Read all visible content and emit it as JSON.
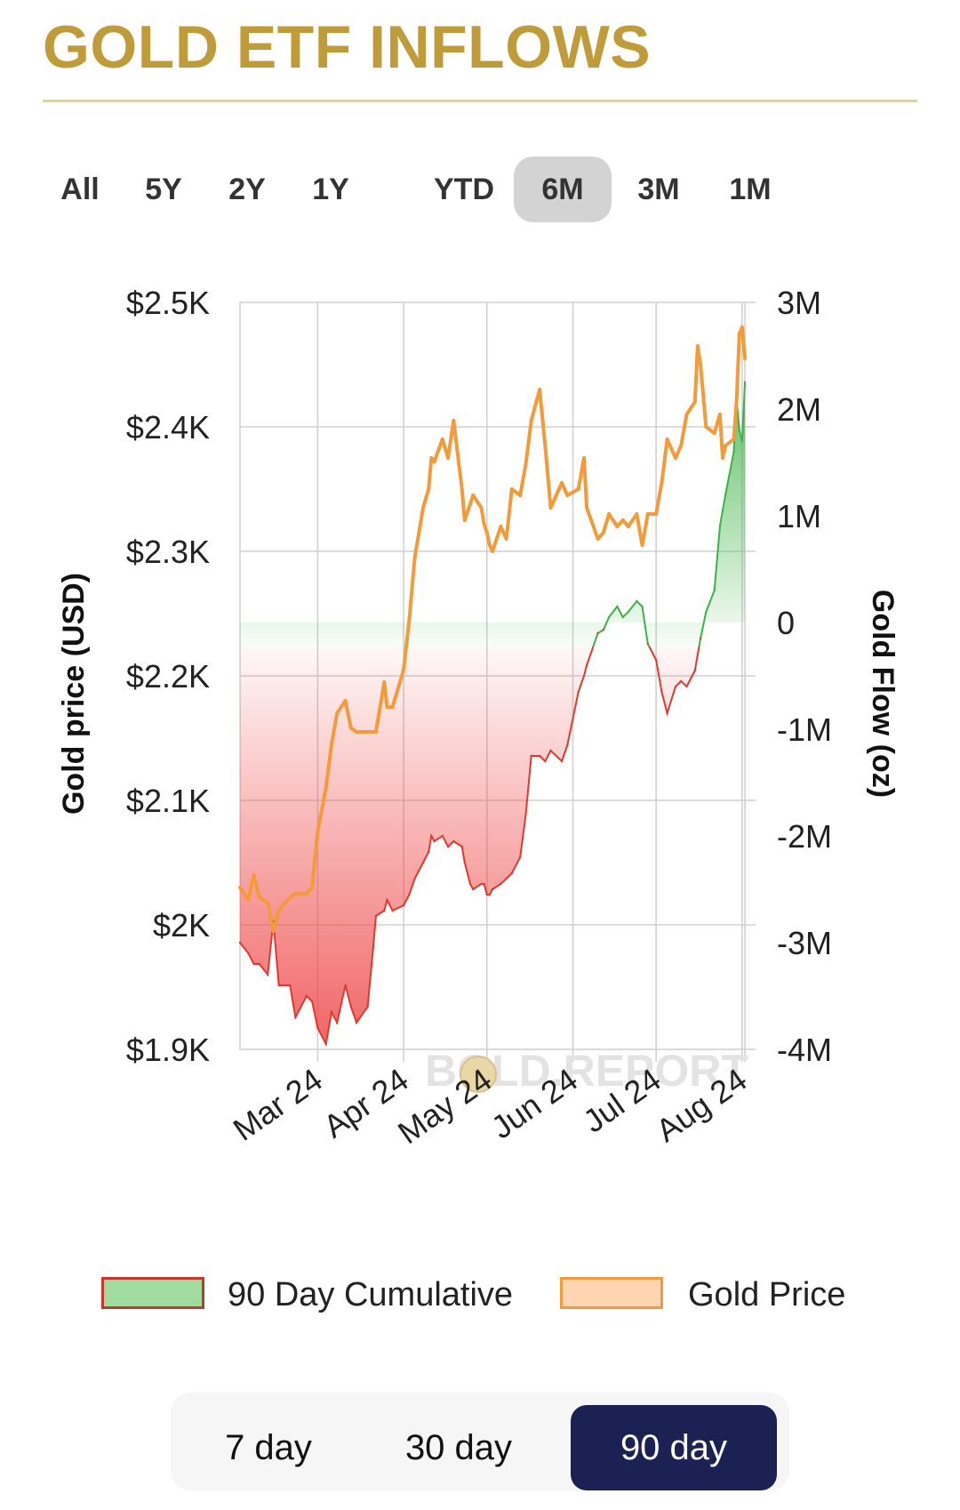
{
  "header": {
    "title": "GOLD ETF INFLOWS"
  },
  "ranges": {
    "items": [
      "All",
      "5Y",
      "2Y",
      "1Y",
      "YTD",
      "6M",
      "3M",
      "1M"
    ],
    "selected": "6M"
  },
  "periods": {
    "items": [
      "7 day",
      "30 day",
      "90 day"
    ],
    "selected": "90 day"
  },
  "colors": {
    "title": "#bf9b3a",
    "price_line": "#f39a3a",
    "flow_positive": "#3fb04a",
    "flow_negative": "#dd3b32",
    "grid": "#cfcfcf",
    "active_range_bg": "#d3d3d3",
    "active_period_bg": "#1c2154"
  },
  "chart_data": {
    "type": "line",
    "watermark": "BOLD.REPORT",
    "x_tick_labels": [
      "Mar 24",
      "Apr 24",
      "May 24",
      "Jun 24",
      "Jul 24",
      "Aug 24"
    ],
    "x_tick_dates": [
      "2024-03-01",
      "2024-04-01",
      "2024-05-01",
      "2024-06-01",
      "2024-07-01",
      "2024-08-01"
    ],
    "x_range": [
      "2024-02-02",
      "2024-08-02"
    ],
    "y_left": {
      "label": "Gold price (USD)",
      "range": [
        1900,
        2500
      ],
      "ticks": [
        2500,
        2400,
        2300,
        2200,
        2100,
        2000,
        1900
      ],
      "tick_labels": [
        "$2.5K",
        "$2.4K",
        "$2.3K",
        "$2.2K",
        "$2.1K",
        "$2K",
        "$1.9K"
      ]
    },
    "y_right": {
      "label": "Gold Flow (oz)",
      "range": [
        -4000000,
        3000000
      ],
      "ticks": [
        3000000,
        2000000,
        1000000,
        0,
        -1000000,
        -2000000,
        -3000000,
        -4000000
      ],
      "tick_labels": [
        "3M",
        "2M",
        "1M",
        "0",
        "-1M",
        "-2M",
        "-3M",
        "-4M"
      ]
    },
    "grid": true,
    "legend_position": "bottom",
    "series": [
      {
        "name": "Gold Price",
        "axis": "left",
        "color": "#f39a3a",
        "points": [
          [
            "2024-02-02",
            2030
          ],
          [
            "2024-02-05",
            2020
          ],
          [
            "2024-02-07",
            2040
          ],
          [
            "2024-02-09",
            2022
          ],
          [
            "2024-02-12",
            2018
          ],
          [
            "2024-02-14",
            1995
          ],
          [
            "2024-02-16",
            2012
          ],
          [
            "2024-02-20",
            2022
          ],
          [
            "2024-02-22",
            2025
          ],
          [
            "2024-02-26",
            2025
          ],
          [
            "2024-02-28",
            2030
          ],
          [
            "2024-03-01",
            2075
          ],
          [
            "2024-03-04",
            2110
          ],
          [
            "2024-03-06",
            2145
          ],
          [
            "2024-03-08",
            2170
          ],
          [
            "2024-03-11",
            2180
          ],
          [
            "2024-03-13",
            2158
          ],
          [
            "2024-03-15",
            2155
          ],
          [
            "2024-03-19",
            2155
          ],
          [
            "2024-03-21",
            2155
          ],
          [
            "2024-03-22",
            2155
          ],
          [
            "2024-03-25",
            2195
          ],
          [
            "2024-03-26",
            2175
          ],
          [
            "2024-03-28",
            2175
          ],
          [
            "2024-04-01",
            2205
          ],
          [
            "2024-04-03",
            2245
          ],
          [
            "2024-04-05",
            2295
          ],
          [
            "2024-04-08",
            2335
          ],
          [
            "2024-04-10",
            2350
          ],
          [
            "2024-04-11",
            2375
          ],
          [
            "2024-04-12",
            2372
          ],
          [
            "2024-04-15",
            2390
          ],
          [
            "2024-04-17",
            2375
          ],
          [
            "2024-04-19",
            2405
          ],
          [
            "2024-04-22",
            2350
          ],
          [
            "2024-04-23",
            2325
          ],
          [
            "2024-04-25",
            2338
          ],
          [
            "2024-04-26",
            2345
          ],
          [
            "2024-04-29",
            2335
          ],
          [
            "2024-04-30",
            2322
          ],
          [
            "2024-05-01",
            2315
          ],
          [
            "2024-05-02",
            2305
          ],
          [
            "2024-05-03",
            2300
          ],
          [
            "2024-05-06",
            2320
          ],
          [
            "2024-05-08",
            2310
          ],
          [
            "2024-05-10",
            2350
          ],
          [
            "2024-05-13",
            2345
          ],
          [
            "2024-05-15",
            2370
          ],
          [
            "2024-05-17",
            2405
          ],
          [
            "2024-05-20",
            2430
          ],
          [
            "2024-05-22",
            2385
          ],
          [
            "2024-05-24",
            2335
          ],
          [
            "2024-05-28",
            2355
          ],
          [
            "2024-05-30",
            2345
          ],
          [
            "2024-06-03",
            2350
          ],
          [
            "2024-06-05",
            2375
          ],
          [
            "2024-06-06",
            2335
          ],
          [
            "2024-06-10",
            2310
          ],
          [
            "2024-06-12",
            2315
          ],
          [
            "2024-06-14",
            2330
          ],
          [
            "2024-06-17",
            2320
          ],
          [
            "2024-06-19",
            2325
          ],
          [
            "2024-06-21",
            2320
          ],
          [
            "2024-06-24",
            2330
          ],
          [
            "2024-06-26",
            2305
          ],
          [
            "2024-06-28",
            2330
          ],
          [
            "2024-07-01",
            2330
          ],
          [
            "2024-07-03",
            2355
          ],
          [
            "2024-07-05",
            2390
          ],
          [
            "2024-07-08",
            2375
          ],
          [
            "2024-07-10",
            2385
          ],
          [
            "2024-07-12",
            2410
          ],
          [
            "2024-07-15",
            2420
          ],
          [
            "2024-07-16",
            2465
          ],
          [
            "2024-07-17",
            2450
          ],
          [
            "2024-07-19",
            2400
          ],
          [
            "2024-07-22",
            2395
          ],
          [
            "2024-07-24",
            2410
          ],
          [
            "2024-07-25",
            2375
          ],
          [
            "2024-07-26",
            2385
          ],
          [
            "2024-07-29",
            2390
          ],
          [
            "2024-07-30",
            2420
          ],
          [
            "2024-07-31",
            2475
          ],
          [
            "2024-08-01",
            2480
          ],
          [
            "2024-08-02",
            2455
          ]
        ]
      },
      {
        "name": "90 Day Cumulative",
        "axis": "right",
        "color": "#dd3b32",
        "positive_color": "#3fb04a",
        "points": [
          [
            "2024-02-02",
            -3000000
          ],
          [
            "2024-02-05",
            -3100000
          ],
          [
            "2024-02-07",
            -3200000
          ],
          [
            "2024-02-09",
            -3200000
          ],
          [
            "2024-02-12",
            -3300000
          ],
          [
            "2024-02-14",
            -2800000
          ],
          [
            "2024-02-16",
            -3400000
          ],
          [
            "2024-02-20",
            -3400000
          ],
          [
            "2024-02-22",
            -3700000
          ],
          [
            "2024-02-26",
            -3500000
          ],
          [
            "2024-02-28",
            -3550000
          ],
          [
            "2024-03-01",
            -3800000
          ],
          [
            "2024-03-04",
            -3950000
          ],
          [
            "2024-03-06",
            -3650000
          ],
          [
            "2024-03-08",
            -3750000
          ],
          [
            "2024-03-11",
            -3400000
          ],
          [
            "2024-03-13",
            -3600000
          ],
          [
            "2024-03-15",
            -3750000
          ],
          [
            "2024-03-19",
            -3600000
          ],
          [
            "2024-03-21",
            -3050000
          ],
          [
            "2024-03-22",
            -2750000
          ],
          [
            "2024-03-25",
            -2700000
          ],
          [
            "2024-03-26",
            -2600000
          ],
          [
            "2024-03-28",
            -2700000
          ],
          [
            "2024-04-01",
            -2650000
          ],
          [
            "2024-04-03",
            -2550000
          ],
          [
            "2024-04-05",
            -2400000
          ],
          [
            "2024-04-08",
            -2250000
          ],
          [
            "2024-04-10",
            -2150000
          ],
          [
            "2024-04-11",
            -2000000
          ],
          [
            "2024-04-12",
            -2050000
          ],
          [
            "2024-04-15",
            -2000000
          ],
          [
            "2024-04-17",
            -2100000
          ],
          [
            "2024-04-19",
            -2050000
          ],
          [
            "2024-04-22",
            -2100000
          ],
          [
            "2024-04-23",
            -2250000
          ],
          [
            "2024-04-25",
            -2450000
          ],
          [
            "2024-04-26",
            -2500000
          ],
          [
            "2024-04-29",
            -2450000
          ],
          [
            "2024-04-30",
            -2450000
          ],
          [
            "2024-05-01",
            -2550000
          ],
          [
            "2024-05-02",
            -2550000
          ],
          [
            "2024-05-03",
            -2500000
          ],
          [
            "2024-05-06",
            -2450000
          ],
          [
            "2024-05-08",
            -2400000
          ],
          [
            "2024-05-10",
            -2350000
          ],
          [
            "2024-05-13",
            -2200000
          ],
          [
            "2024-05-15",
            -1800000
          ],
          [
            "2024-05-17",
            -1250000
          ],
          [
            "2024-05-20",
            -1250000
          ],
          [
            "2024-05-22",
            -1300000
          ],
          [
            "2024-05-24",
            -1200000
          ],
          [
            "2024-05-28",
            -1300000
          ],
          [
            "2024-05-30",
            -1150000
          ],
          [
            "2024-06-03",
            -650000
          ],
          [
            "2024-06-05",
            -500000
          ],
          [
            "2024-06-06",
            -400000
          ],
          [
            "2024-06-10",
            -100000
          ],
          [
            "2024-06-12",
            -70000
          ],
          [
            "2024-06-14",
            50000
          ],
          [
            "2024-06-17",
            150000
          ],
          [
            "2024-06-19",
            50000
          ],
          [
            "2024-06-21",
            100000
          ],
          [
            "2024-06-24",
            200000
          ],
          [
            "2024-06-26",
            150000
          ],
          [
            "2024-06-28",
            -200000
          ],
          [
            "2024-07-01",
            -350000
          ],
          [
            "2024-07-03",
            -650000
          ],
          [
            "2024-07-05",
            -850000
          ],
          [
            "2024-07-08",
            -600000
          ],
          [
            "2024-07-10",
            -550000
          ],
          [
            "2024-07-12",
            -600000
          ],
          [
            "2024-07-15",
            -450000
          ],
          [
            "2024-07-16",
            -300000
          ],
          [
            "2024-07-17",
            -150000
          ],
          [
            "2024-07-19",
            100000
          ],
          [
            "2024-07-22",
            300000
          ],
          [
            "2024-07-24",
            900000
          ],
          [
            "2024-07-25",
            1050000
          ],
          [
            "2024-07-26",
            1200000
          ],
          [
            "2024-07-29",
            1600000
          ],
          [
            "2024-07-30",
            2100000
          ],
          [
            "2024-07-31",
            1800000
          ],
          [
            "2024-08-01",
            1700000
          ],
          [
            "2024-08-02",
            2250000
          ]
        ]
      }
    ]
  }
}
